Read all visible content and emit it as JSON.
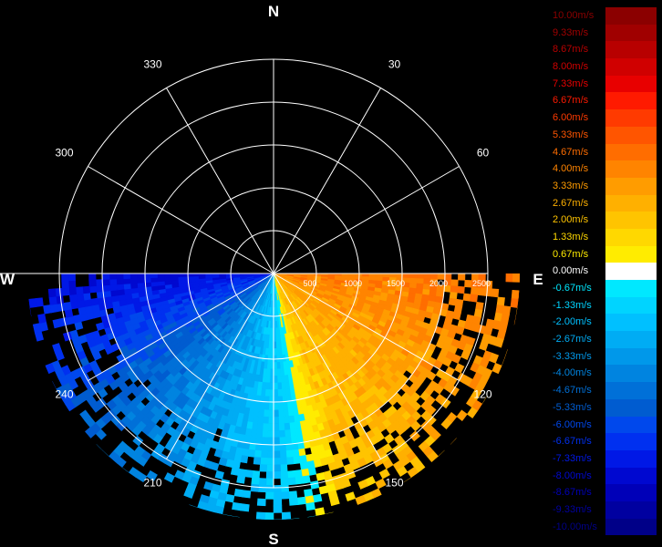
{
  "compass": {
    "north": "N",
    "south": "S",
    "east": "E",
    "west": "W"
  },
  "azimuth_labels": [
    {
      "deg": 330,
      "text": "330"
    },
    {
      "deg": 30,
      "text": "30"
    },
    {
      "deg": 300,
      "text": "300"
    },
    {
      "deg": 60,
      "text": "60"
    },
    {
      "deg": 240,
      "text": "240"
    },
    {
      "deg": 120,
      "text": "120"
    },
    {
      "deg": 210,
      "text": "210"
    },
    {
      "deg": 150,
      "text": "150"
    }
  ],
  "range_labels": [
    "500",
    "1000",
    "1500",
    "2000",
    "2500"
  ],
  "legend": [
    {
      "label": "10.00m/s",
      "color": "#8b0000"
    },
    {
      "label": "9.33m/s",
      "color": "#a00000"
    },
    {
      "label": "8.67m/s",
      "color": "#b80000"
    },
    {
      "label": "8.00m/s",
      "color": "#d00000"
    },
    {
      "label": "7.33m/s",
      "color": "#e80000"
    },
    {
      "label": "6.67m/s",
      "color": "#ff1a00"
    },
    {
      "label": "6.00m/s",
      "color": "#ff3a00"
    },
    {
      "label": "5.33m/s",
      "color": "#ff5500"
    },
    {
      "label": "4.67m/s",
      "color": "#ff6d00"
    },
    {
      "label": "4.00m/s",
      "color": "#ff8400"
    },
    {
      "label": "3.33m/s",
      "color": "#ff9c00"
    },
    {
      "label": "2.67m/s",
      "color": "#ffb000"
    },
    {
      "label": "2.00m/s",
      "color": "#ffc400"
    },
    {
      "label": "1.33m/s",
      "color": "#ffd800"
    },
    {
      "label": "0.67m/s",
      "color": "#ffec00"
    },
    {
      "label": "0.00m/s",
      "color": "#ffffff"
    },
    {
      "label": "-0.67m/s",
      "color": "#00e8ff"
    },
    {
      "label": "-1.33m/s",
      "color": "#00d4ff"
    },
    {
      "label": "-2.00m/s",
      "color": "#00c0ff"
    },
    {
      "label": "-2.67m/s",
      "color": "#00acf4"
    },
    {
      "label": "-3.33m/s",
      "color": "#0098ea"
    },
    {
      "label": "-4.00m/s",
      "color": "#0084e0"
    },
    {
      "label": "-4.67m/s",
      "color": "#0070d8"
    },
    {
      "label": "-5.33m/s",
      "color": "#005cd0"
    },
    {
      "label": "-6.00m/s",
      "color": "#0048ec"
    },
    {
      "label": "-6.67m/s",
      "color": "#0030f0"
    },
    {
      "label": "-7.33m/s",
      "color": "#0018e6"
    },
    {
      "label": "-8.00m/s",
      "color": "#0008d0"
    },
    {
      "label": "-8.67m/s",
      "color": "#0000b8"
    },
    {
      "label": "-9.33m/s",
      "color": "#0000a0"
    },
    {
      "label": "-10.00m/s",
      "color": "#000088"
    }
  ]
}
